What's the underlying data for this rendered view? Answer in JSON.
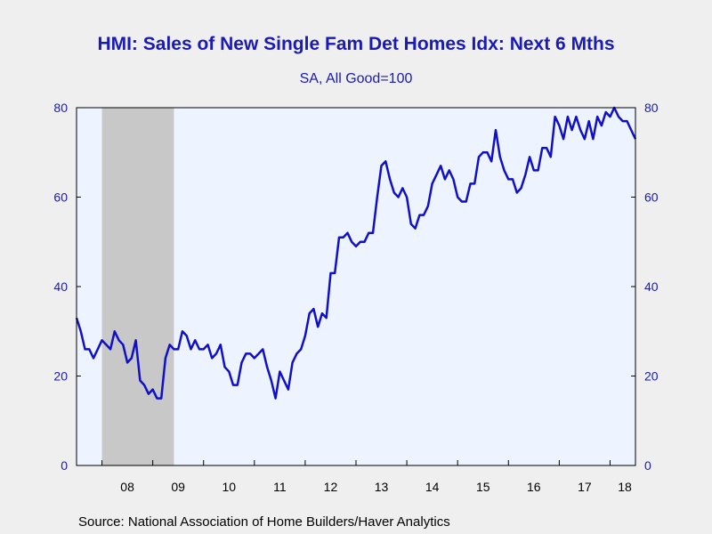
{
  "title": "HMI: Sales of New Single Fam Det Homes Idx: Next 6 Mths",
  "subtitle": "SA, All Good=100",
  "source": "Source:  National Association of Home Builders/Haver Analytics",
  "colors": {
    "line": "#1010c8",
    "text": "#1a1ab4",
    "plot_bg": "#eef4ff",
    "recession": "#c8c8c8",
    "page_bg": "#efefef"
  },
  "chart_data": {
    "type": "line",
    "ylim": [
      0,
      80
    ],
    "y_ticks": [
      0,
      20,
      40,
      60,
      80
    ],
    "x_tick_labels": [
      "08",
      "09",
      "10",
      "11",
      "12",
      "13",
      "14",
      "15",
      "16",
      "17",
      "18"
    ],
    "x_range": [
      "2007-07",
      "2018-07"
    ],
    "recession_shading": [
      "2008-01",
      "2009-06"
    ],
    "right_axis": true,
    "grid": false,
    "series": [
      {
        "points": [
          [
            "2007-07",
            33
          ],
          [
            "2007-08",
            30
          ],
          [
            "2007-09",
            26
          ],
          [
            "2007-10",
            26
          ],
          [
            "2007-11",
            24
          ],
          [
            "2007-12",
            26
          ],
          [
            "2008-01",
            28
          ],
          [
            "2008-02",
            27
          ],
          [
            "2008-03",
            26
          ],
          [
            "2008-04",
            30
          ],
          [
            "2008-05",
            28
          ],
          [
            "2008-06",
            27
          ],
          [
            "2008-07",
            23
          ],
          [
            "2008-08",
            24
          ],
          [
            "2008-09",
            28
          ],
          [
            "2008-10",
            19
          ],
          [
            "2008-11",
            18
          ],
          [
            "2008-12",
            16
          ],
          [
            "2009-01",
            17
          ],
          [
            "2009-02",
            15
          ],
          [
            "2009-03",
            15
          ],
          [
            "2009-04",
            24
          ],
          [
            "2009-05",
            27
          ],
          [
            "2009-06",
            26
          ],
          [
            "2009-07",
            26
          ],
          [
            "2009-08",
            30
          ],
          [
            "2009-09",
            29
          ],
          [
            "2009-10",
            26
          ],
          [
            "2009-11",
            28
          ],
          [
            "2009-12",
            26
          ],
          [
            "2010-01",
            26
          ],
          [
            "2010-02",
            27
          ],
          [
            "2010-03",
            24
          ],
          [
            "2010-04",
            25
          ],
          [
            "2010-05",
            27
          ],
          [
            "2010-06",
            22
          ],
          [
            "2010-07",
            21
          ],
          [
            "2010-08",
            18
          ],
          [
            "2010-09",
            18
          ],
          [
            "2010-10",
            23
          ],
          [
            "2010-11",
            25
          ],
          [
            "2010-12",
            25
          ],
          [
            "2011-01",
            24
          ],
          [
            "2011-02",
            25
          ],
          [
            "2011-03",
            26
          ],
          [
            "2011-04",
            22
          ],
          [
            "2011-05",
            19
          ],
          [
            "2011-06",
            15
          ],
          [
            "2011-07",
            21
          ],
          [
            "2011-08",
            19
          ],
          [
            "2011-09",
            17
          ],
          [
            "2011-10",
            23
          ],
          [
            "2011-11",
            25
          ],
          [
            "2011-12",
            26
          ],
          [
            "2012-01",
            29
          ],
          [
            "2012-02",
            34
          ],
          [
            "2012-03",
            35
          ],
          [
            "2012-04",
            31
          ],
          [
            "2012-05",
            34
          ],
          [
            "2012-06",
            33
          ],
          [
            "2012-07",
            43
          ],
          [
            "2012-08",
            43
          ],
          [
            "2012-09",
            51
          ],
          [
            "2012-10",
            51
          ],
          [
            "2012-11",
            52
          ],
          [
            "2012-12",
            50
          ],
          [
            "2013-01",
            49
          ],
          [
            "2013-02",
            50
          ],
          [
            "2013-03",
            50
          ],
          [
            "2013-04",
            52
          ],
          [
            "2013-05",
            52
          ],
          [
            "2013-06",
            60
          ],
          [
            "2013-07",
            67
          ],
          [
            "2013-08",
            68
          ],
          [
            "2013-09",
            64
          ],
          [
            "2013-10",
            61
          ],
          [
            "2013-11",
            60
          ],
          [
            "2013-12",
            62
          ],
          [
            "2014-01",
            60
          ],
          [
            "2014-02",
            54
          ],
          [
            "2014-03",
            53
          ],
          [
            "2014-04",
            56
          ],
          [
            "2014-05",
            56
          ],
          [
            "2014-06",
            58
          ],
          [
            "2014-07",
            63
          ],
          [
            "2014-08",
            65
          ],
          [
            "2014-09",
            67
          ],
          [
            "2014-10",
            64
          ],
          [
            "2014-11",
            66
          ],
          [
            "2014-12",
            64
          ],
          [
            "2015-01",
            60
          ],
          [
            "2015-02",
            59
          ],
          [
            "2015-03",
            59
          ],
          [
            "2015-04",
            63
          ],
          [
            "2015-05",
            63
          ],
          [
            "2015-06",
            69
          ],
          [
            "2015-07",
            70
          ],
          [
            "2015-08",
            70
          ],
          [
            "2015-09",
            68
          ],
          [
            "2015-10",
            75
          ],
          [
            "2015-11",
            69
          ],
          [
            "2015-12",
            66
          ],
          [
            "2016-01",
            64
          ],
          [
            "2016-02",
            64
          ],
          [
            "2016-03",
            61
          ],
          [
            "2016-04",
            62
          ],
          [
            "2016-05",
            65
          ],
          [
            "2016-06",
            69
          ],
          [
            "2016-07",
            66
          ],
          [
            "2016-08",
            66
          ],
          [
            "2016-09",
            71
          ],
          [
            "2016-10",
            71
          ],
          [
            "2016-11",
            69
          ],
          [
            "2016-12",
            78
          ],
          [
            "2017-01",
            76
          ],
          [
            "2017-02",
            73
          ],
          [
            "2017-03",
            78
          ],
          [
            "2017-04",
            75
          ],
          [
            "2017-05",
            78
          ],
          [
            "2017-06",
            75
          ],
          [
            "2017-07",
            73
          ],
          [
            "2017-08",
            77
          ],
          [
            "2017-09",
            73
          ],
          [
            "2017-10",
            78
          ],
          [
            "2017-11",
            76
          ],
          [
            "2017-12",
            79
          ],
          [
            "2018-01",
            78
          ],
          [
            "2018-02",
            80
          ],
          [
            "2018-03",
            78
          ],
          [
            "2018-04",
            77
          ],
          [
            "2018-05",
            77
          ],
          [
            "2018-06",
            75
          ],
          [
            "2018-07",
            73
          ]
        ]
      }
    ]
  }
}
